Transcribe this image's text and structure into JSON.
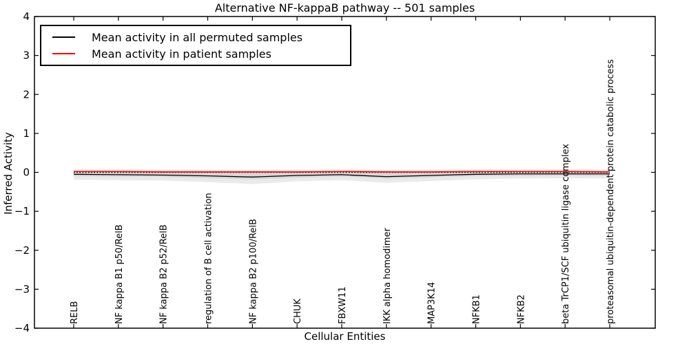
{
  "window": {
    "title": "Alternative NF-kappaB pathway -- 501 samples"
  },
  "chart_data": {
    "type": "line",
    "title": "Alternative NF-kappaB pathway -- 501 samples",
    "xlabel": "Cellular Entities",
    "ylabel": "Inferred Activity",
    "ylim": [
      -4,
      4
    ],
    "yticks": [
      -4,
      -3,
      -2,
      -1,
      0,
      1,
      2,
      3,
      4
    ],
    "grid": false,
    "legend_position": "upper left",
    "categories": [
      "RELB",
      "NF kappa B1 p50/RelB",
      "NF kappa B2 p52/RelB",
      "regulation of B cell activation",
      "NF kappa B2 p100/RelB",
      "CHUK",
      "FBXW11",
      "IKK alpha homodimer",
      "MAP3K14",
      "NFKB1",
      "NFKB2",
      "beta TrCP1/SCF ubiquitin ligase complex",
      "proteasomal ubiquitin-dependent protein catabolic process"
    ],
    "series": [
      {
        "name": "Mean activity in all permuted samples",
        "color": "#000000",
        "values": [
          -0.05,
          -0.06,
          -0.07,
          -0.09,
          -0.12,
          -0.08,
          -0.06,
          -0.11,
          -0.08,
          -0.05,
          -0.04,
          -0.04,
          -0.04
        ]
      },
      {
        "name": "Mean activity in patient samples",
        "color": "#ff0000",
        "values": [
          0.02,
          0.02,
          0.01,
          0.01,
          0.01,
          0.01,
          0.02,
          0.01,
          0.01,
          0.02,
          0.02,
          0.02,
          0.01
        ]
      }
    ],
    "zero_line": {
      "y": 0,
      "style": "dotted",
      "color": "#000000"
    },
    "bands": [
      {
        "name": "outer-std-band",
        "color": "#eaeaea",
        "upper": [
          0.08,
          0.08,
          0.07,
          0.07,
          0.06,
          0.07,
          0.07,
          0.06,
          0.07,
          0.08,
          0.08,
          0.08,
          0.08
        ],
        "lower": [
          -0.19,
          -0.2,
          -0.21,
          -0.25,
          -0.3,
          -0.23,
          -0.2,
          -0.27,
          -0.22,
          -0.18,
          -0.16,
          -0.15,
          -0.16
        ]
      },
      {
        "name": "inner-std-band",
        "color": "#d8d8d8",
        "upper": [
          0.05,
          0.05,
          0.05,
          0.04,
          0.04,
          0.04,
          0.05,
          0.04,
          0.04,
          0.05,
          0.05,
          0.05,
          0.05
        ],
        "lower": [
          -0.1,
          -0.11,
          -0.12,
          -0.15,
          -0.18,
          -0.14,
          -0.11,
          -0.16,
          -0.13,
          -0.1,
          -0.09,
          -0.08,
          -0.09
        ]
      }
    ]
  }
}
